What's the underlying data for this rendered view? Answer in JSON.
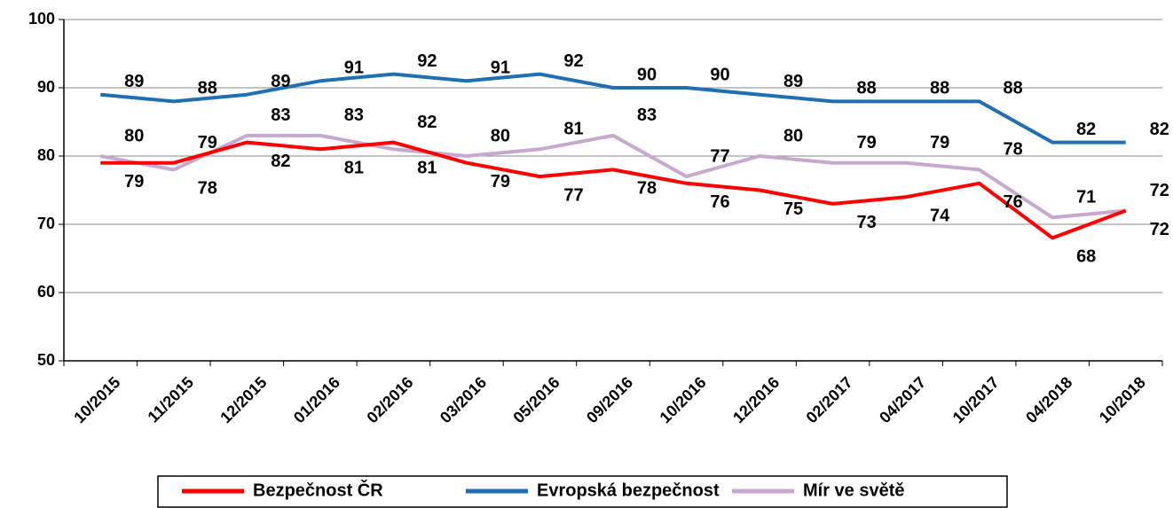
{
  "chart_data": {
    "type": "line",
    "categories": [
      "10/2015",
      "11/2015",
      "12/2015",
      "01/2016",
      "02/2016",
      "03/2016",
      "05/2016",
      "09/2016",
      "10/2016",
      "12/2016",
      "02/2017",
      "04/2017",
      "10/2017",
      "04/2018",
      "10/2018"
    ],
    "series": [
      {
        "name": "Bezpečnost ČR",
        "color": "#ff0000",
        "values": [
          79,
          79,
          82,
          81,
          82,
          79,
          77,
          78,
          76,
          75,
          73,
          74,
          76,
          68,
          72
        ]
      },
      {
        "name": "Evropská bezpečnost",
        "color": "#1f6fb5",
        "values": [
          89,
          88,
          89,
          91,
          92,
          91,
          92,
          90,
          90,
          89,
          88,
          88,
          88,
          82,
          82
        ]
      },
      {
        "name": "Mír ve světě",
        "color": "#c8a8d0",
        "values": [
          80,
          78,
          83,
          83,
          81,
          80,
          81,
          83,
          77,
          80,
          79,
          79,
          78,
          71,
          72
        ]
      }
    ],
    "ylim": [
      50,
      100
    ],
    "yticks": [
      50,
      60,
      70,
      80,
      90,
      100
    ],
    "grid": true,
    "legend": "bottom"
  }
}
